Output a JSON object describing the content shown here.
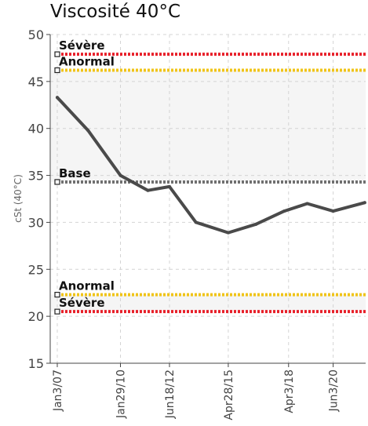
{
  "chart_data": {
    "type": "line",
    "title": "Viscosité 40°C",
    "xlabel": "",
    "ylabel": "cSt (40°C)",
    "ylim": [
      15,
      50
    ],
    "yticks": [
      15,
      20,
      25,
      30,
      35,
      40,
      45,
      50
    ],
    "xlim": [
      "2007-01-03",
      "2022-01-01"
    ],
    "x_tick_labels": [
      "Jan3/07",
      "Jan29/10",
      "Jun18/12",
      "Apr28/15",
      "Apr3/18",
      "Jun3/20"
    ],
    "x_tick_dates": [
      "2007-01-03",
      "2010-01-29",
      "2012-06-18",
      "2015-04-28",
      "2018-04-03",
      "2020-06-03"
    ],
    "grid": true,
    "bands": [
      {
        "from": 20.5,
        "to": 22.3,
        "fill": "#f5f5f5"
      },
      {
        "from": 34.3,
        "to": 46.2,
        "fill": "#f5f5f5"
      }
    ],
    "reference_lines": [
      {
        "label": "Sévère",
        "value": 47.9,
        "color": "#e8202a",
        "label_position": "above"
      },
      {
        "label": "Anormal",
        "value": 46.2,
        "color": "#f0c419",
        "label_position": "above"
      },
      {
        "label": "Base",
        "value": 34.3,
        "color": "#707070",
        "label_position": "above"
      },
      {
        "label": "Anormal",
        "value": 22.3,
        "color": "#f0c419",
        "label_position": "above"
      },
      {
        "label": "Sévère",
        "value": 20.5,
        "color": "#e8202a",
        "label_position": "above"
      }
    ],
    "series": [
      {
        "color": "#4a4a4a",
        "points": [
          {
            "x": "2007-01-03",
            "y": 43.3
          },
          {
            "x": "2008-07-01",
            "y": 39.8
          },
          {
            "x": "2010-01-29",
            "y": 35.0
          },
          {
            "x": "2011-06-01",
            "y": 33.4
          },
          {
            "x": "2012-06-18",
            "y": 33.8
          },
          {
            "x": "2013-10-01",
            "y": 30.0
          },
          {
            "x": "2015-04-28",
            "y": 28.9
          },
          {
            "x": "2016-09-01",
            "y": 29.8
          },
          {
            "x": "2018-01-15",
            "y": 31.2
          },
          {
            "x": "2019-03-01",
            "y": 32.0
          },
          {
            "x": "2020-06-03",
            "y": 31.2
          },
          {
            "x": "2021-12-15",
            "y": 32.1
          }
        ]
      }
    ]
  }
}
